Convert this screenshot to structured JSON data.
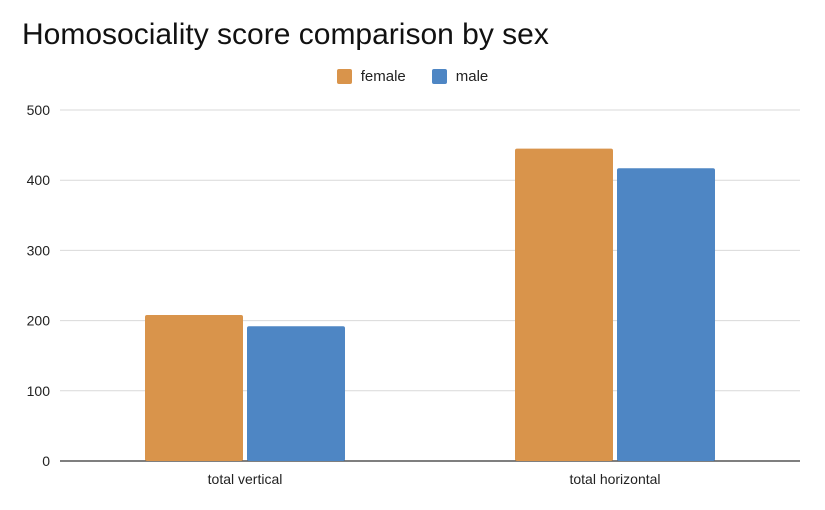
{
  "chart_data": {
    "type": "bar",
    "title": "Homosociality score comparison by sex",
    "xlabel": "",
    "ylabel": "",
    "categories": [
      "total vertical",
      "total horizontal"
    ],
    "series": [
      {
        "name": "female",
        "values": [
          208,
          445
        ],
        "color": "#d9944b"
      },
      {
        "name": "male",
        "values": [
          192,
          417
        ],
        "color": "#4e86c4"
      }
    ],
    "ylim": [
      0,
      500
    ],
    "yticks": [
      0,
      100,
      200,
      300,
      400,
      500
    ],
    "grid": true,
    "legend_position": "top-center"
  }
}
